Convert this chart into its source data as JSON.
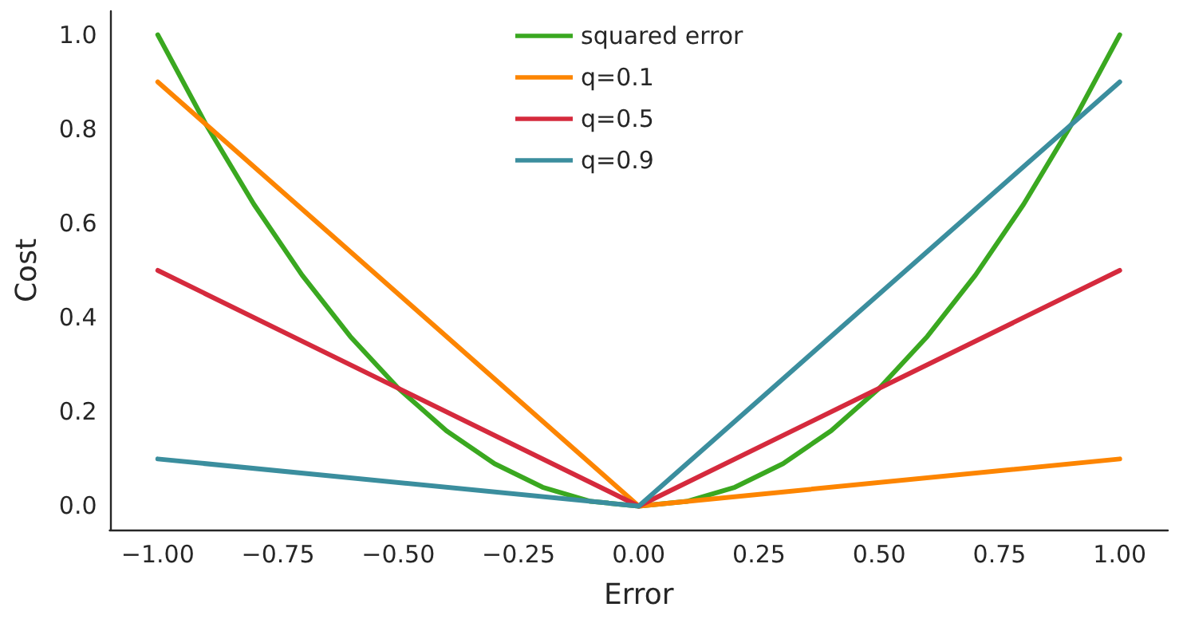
{
  "chart_data": {
    "type": "line",
    "xlabel": "Error",
    "ylabel": "Cost",
    "series": [
      {
        "name": "squared error",
        "color": "#3aa820",
        "x": [
          -1,
          -0.9,
          -0.8,
          -0.7,
          -0.6,
          -0.5,
          -0.4,
          -0.3,
          -0.2,
          -0.1,
          0,
          0.1,
          0.2,
          0.3,
          0.4,
          0.5,
          0.6,
          0.7,
          0.8,
          0.9,
          1
        ],
        "values": [
          1,
          0.81,
          0.64,
          0.49,
          0.36,
          0.25,
          0.16,
          0.09,
          0.04,
          0.01,
          0,
          0.01,
          0.04,
          0.09,
          0.16,
          0.25,
          0.36,
          0.49,
          0.64,
          0.81,
          1
        ]
      },
      {
        "name": "q=0.1",
        "color": "#fd8500",
        "x": [
          -1,
          0,
          1
        ],
        "values": [
          0.9,
          0,
          0.1
        ]
      },
      {
        "name": "q=0.5",
        "color": "#d52a3d",
        "x": [
          -1,
          0,
          1
        ],
        "values": [
          0.5,
          0,
          0.5
        ]
      },
      {
        "name": "q=0.9",
        "color": "#3b8e9e",
        "x": [
          -1,
          0,
          1
        ],
        "values": [
          0.1,
          0,
          0.9
        ]
      }
    ],
    "xlim": [
      -1.1,
      1.1
    ],
    "xticks": [
      {
        "value": -1,
        "label": "−1.00"
      },
      {
        "value": -0.75,
        "label": "−0.75"
      },
      {
        "value": -0.5,
        "label": "−0.50"
      },
      {
        "value": -0.25,
        "label": "−0.25"
      },
      {
        "value": 0,
        "label": "0.00"
      },
      {
        "value": 0.25,
        "label": "0.25"
      },
      {
        "value": 0.5,
        "label": "0.50"
      },
      {
        "value": 0.75,
        "label": "0.75"
      },
      {
        "value": 1,
        "label": "1.00"
      }
    ],
    "ylim": [
      -0.05,
      1.05
    ],
    "yticks": [
      {
        "value": 0,
        "label": "0.0"
      },
      {
        "value": 0.2,
        "label": "0.2"
      },
      {
        "value": 0.4,
        "label": "0.4"
      },
      {
        "value": 0.6,
        "label": "0.6"
      },
      {
        "value": 0.8,
        "label": "0.8"
      },
      {
        "value": 1,
        "label": "1.0"
      }
    ],
    "grid": false,
    "legend": "top",
    "marker": "none",
    "line_style": "solid"
  }
}
